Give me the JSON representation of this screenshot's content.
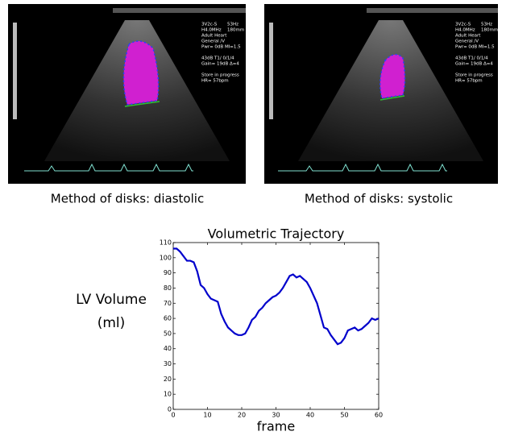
{
  "panels": [
    {
      "caption": "Method of disks: diastolic",
      "overlay": [
        "3V2c-S",
        "53Hz",
        "H4.0MHz",
        "180mm",
        "Adult Heart",
        "General /V",
        "Pwr= 0dB MI=1.5",
        "43dB T1/ 0/1/4",
        "Gain= 19dB Δ=4",
        "Store in progress",
        "HR= 57bpm"
      ]
    },
    {
      "caption": "Method of disks: systolic",
      "overlay": [
        "3V2c-S",
        "53Hz",
        "H4.0MHz",
        "180mm",
        "Adult Heart",
        "General /V",
        "Pwr= 0dB MI=1.5",
        "43dB T1/ 0/1/4",
        "Gain= 19dB Δ=4",
        "Store in progress",
        "HR= 57bpm"
      ]
    }
  ],
  "chart_data": {
    "type": "line",
    "title": "Volumetric Trajectory",
    "y_label": [
      "LV Volume",
      "(ml)"
    ],
    "x_label": "frame",
    "x": [
      0,
      1,
      2,
      3,
      4,
      5,
      6,
      7,
      8,
      9,
      10,
      11,
      12,
      13,
      14,
      15,
      16,
      17,
      18,
      19,
      20,
      21,
      22,
      23,
      24,
      25,
      26,
      27,
      28,
      29,
      30,
      31,
      32,
      33,
      34,
      35,
      36,
      37,
      38,
      39,
      40,
      41,
      42,
      43,
      44,
      45,
      46,
      47,
      48,
      49,
      50,
      51,
      52,
      53,
      54,
      55,
      56,
      57,
      58,
      59,
      60
    ],
    "series": [
      {
        "color": "#0000cc",
        "values": [
          106,
          106,
          104,
          101,
          98,
          98,
          97,
          91,
          82,
          80,
          76,
          73,
          72,
          71,
          63,
          58,
          54,
          52,
          50,
          49,
          49,
          50,
          54,
          59,
          61,
          65,
          67,
          70,
          72,
          74,
          75,
          77,
          80,
          84,
          88,
          89,
          87,
          88,
          86,
          84,
          80,
          75,
          70,
          62,
          54,
          53,
          49,
          46,
          43,
          44,
          47,
          52,
          53,
          54,
          52,
          53,
          55,
          57,
          60,
          59,
          60
        ]
      }
    ],
    "xlim": [
      0,
      60
    ],
    "xticks": [
      0,
      10,
      20,
      30,
      40,
      50,
      60
    ],
    "ylim": [
      0,
      110
    ],
    "yticks": [
      0,
      10,
      20,
      30,
      40,
      50,
      60,
      70,
      80,
      90,
      100,
      110
    ]
  }
}
